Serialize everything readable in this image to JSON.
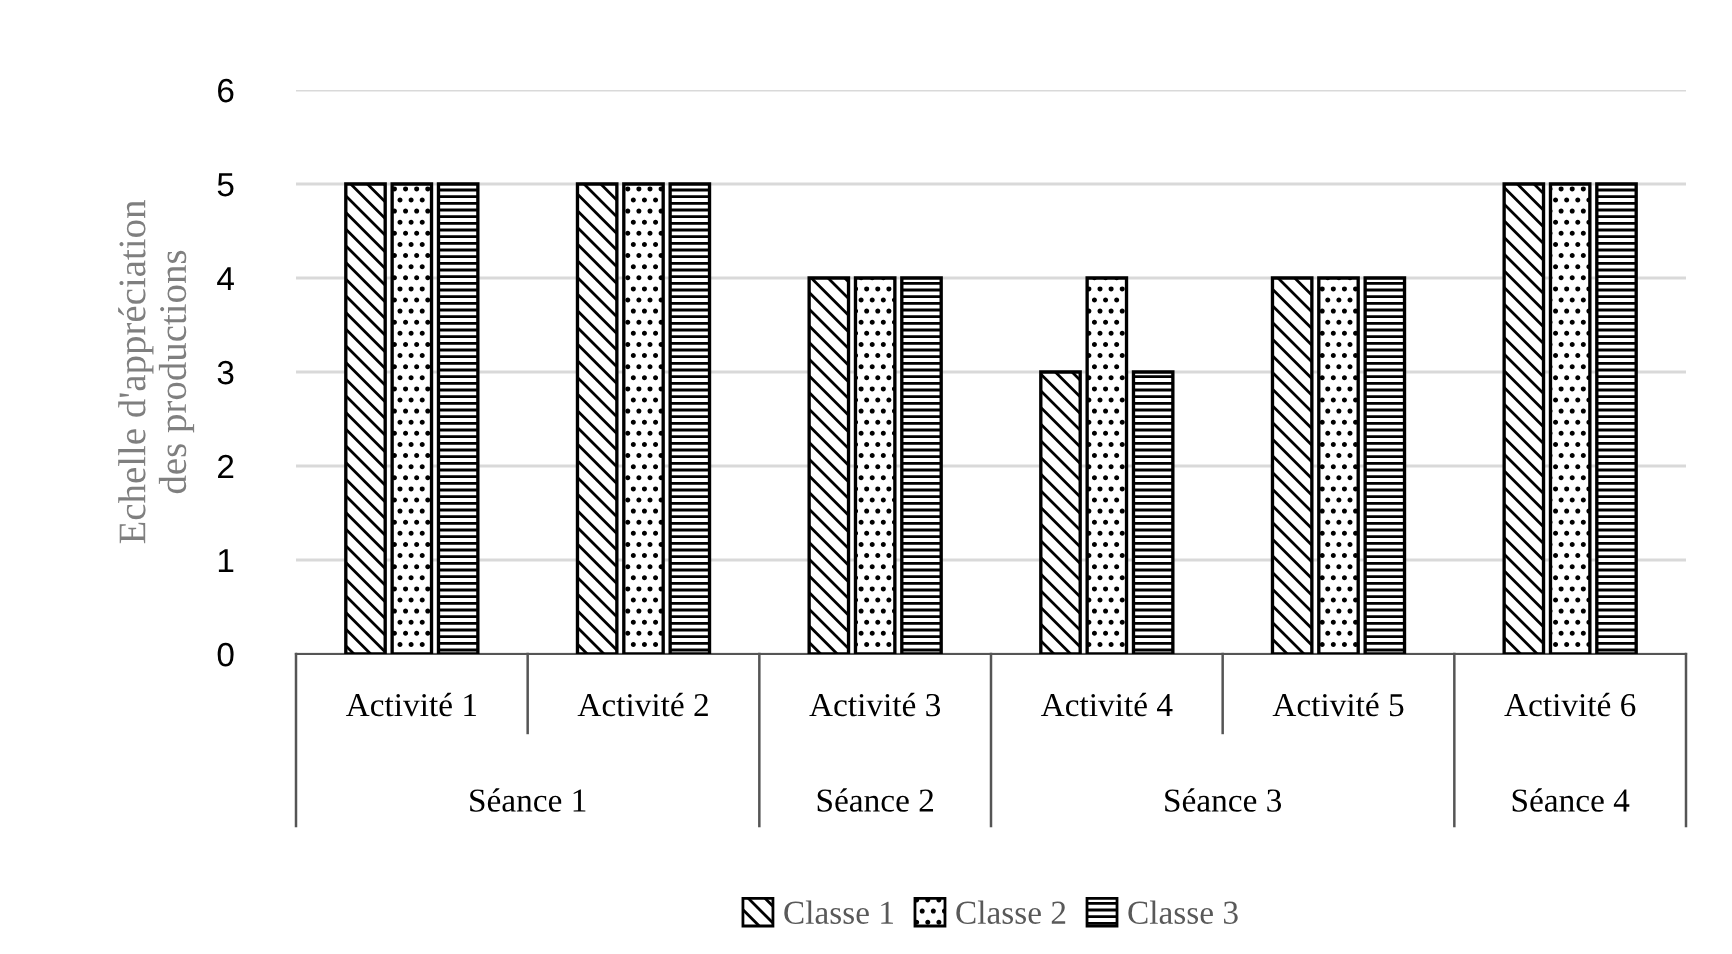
{
  "chart_data": {
    "type": "bar",
    "ylabel": "Echelle d'appréciation\ndes productions",
    "categories": [
      "Activité 1",
      "Activité 2",
      "Activité 3",
      "Activité 4",
      "Activité 5",
      "Activité 6"
    ],
    "series": [
      {
        "name": "Classe 1",
        "color": "#000000",
        "values": [
          5,
          5,
          4,
          3,
          4,
          5
        ]
      },
      {
        "name": "Classe 2",
        "color": "#000000",
        "values": [
          5,
          5,
          4,
          4,
          4,
          5
        ]
      },
      {
        "name": "Classe 3",
        "color": "#000000",
        "values": [
          5,
          5,
          4,
          3,
          4,
          5
        ]
      }
    ],
    "annotations": [
      "Séance 1",
      "Séance 2",
      "Séance 3",
      "Séance 4"
    ],
    "ylim": [
      0,
      6
    ],
    "yticks": [
      0,
      1,
      2,
      3,
      4,
      5,
      6
    ],
    "grid": "y",
    "legend": "bottom"
  }
}
